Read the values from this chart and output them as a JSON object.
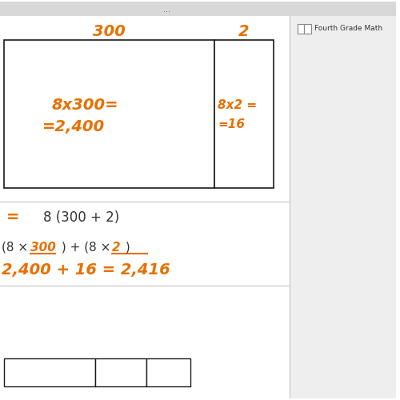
{
  "bg_color": "#ffffff",
  "orange": "#E87000",
  "black": "#1a1a1a",
  "gray_med": "#aaaaaa",
  "sidebar_bg": "#eeeeee",
  "topbar_bg": "#d8d8d8",
  "top_label_300": "300",
  "top_label_2": "2",
  "box_left_line1": "8x300=",
  "box_left_line2": "=2,400",
  "box_right_line1": "8x2 =",
  "box_right_line2": "=16",
  "equals_text": "=",
  "distributive_text": "8 (300 + 2)",
  "bottom_line1_a": "(8 × ",
  "bottom_line1_b": "300",
  "bottom_line1_c": " ) + (8 × ",
  "bottom_line1_d": "2",
  "bottom_line1_e": " )",
  "bottom_line2": "2,400 + 16 = 2,416",
  "sidebar_text": "Fourth Grade Math",
  "dots_text": "...",
  "fig_width": 5.0,
  "fig_height": 5.0,
  "dpi": 100
}
